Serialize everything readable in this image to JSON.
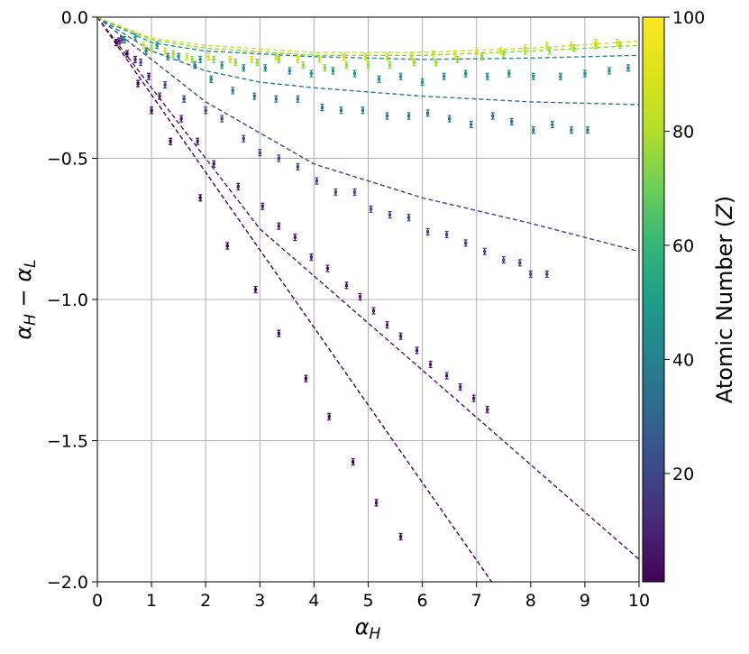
{
  "chart_data": {
    "type": "scatter",
    "xlabel": "α_H",
    "ylabel": "α_H − α_L",
    "xlim": [
      0,
      10
    ],
    "ylim": [
      -2.0,
      0.0
    ],
    "x_ticks": [
      0,
      1,
      2,
      3,
      4,
      5,
      6,
      7,
      8,
      9,
      10
    ],
    "x_tick_labels": [
      "0",
      "1",
      "2",
      "3",
      "4",
      "5",
      "6",
      "7",
      "8",
      "9",
      "10"
    ],
    "y_ticks": [
      0.0,
      -0.5,
      -1.0,
      -1.5,
      -2.0
    ],
    "y_tick_labels": [
      "0.0",
      "−0.5",
      "−1.0",
      "−1.5",
      "−2.0"
    ],
    "grid": true,
    "colorbar": {
      "label": "Atomic Number (Z)",
      "range": [
        1,
        100
      ],
      "ticks": [
        20,
        40,
        60,
        80,
        100
      ],
      "tick_labels": [
        "20",
        "40",
        "60",
        "80",
        "100"
      ],
      "colormap": "viridis"
    },
    "series": [
      {
        "z": 1,
        "color": "#440154",
        "points": [
          [
            0.35,
            -0.09
          ],
          [
            0.55,
            -0.13
          ],
          [
            0.75,
            -0.235
          ],
          [
            1.0,
            -0.33
          ],
          [
            1.35,
            -0.44
          ],
          [
            1.9,
            -0.64
          ],
          [
            2.4,
            -0.81
          ],
          [
            2.92,
            -0.965
          ],
          [
            3.35,
            -1.12
          ],
          [
            3.85,
            -1.28
          ],
          [
            4.28,
            -1.415
          ],
          [
            4.72,
            -1.575
          ],
          [
            5.15,
            -1.72
          ],
          [
            5.6,
            -1.84
          ]
        ],
        "fit_line": [
          [
            0,
            0
          ],
          [
            7.28,
            -2.0
          ]
        ]
      },
      {
        "z": 5,
        "color": "#481a6c",
        "points": [
          [
            0.4,
            -0.085
          ],
          [
            0.7,
            -0.15
          ],
          [
            0.95,
            -0.21
          ],
          [
            1.15,
            -0.28
          ],
          [
            1.55,
            -0.36
          ],
          [
            1.85,
            -0.44
          ],
          [
            2.15,
            -0.52
          ],
          [
            2.6,
            -0.6
          ],
          [
            3.05,
            -0.67
          ],
          [
            3.35,
            -0.74
          ],
          [
            3.65,
            -0.78
          ],
          [
            3.95,
            -0.85
          ],
          [
            4.25,
            -0.89
          ],
          [
            4.6,
            -0.95
          ],
          [
            4.85,
            -0.99
          ],
          [
            5.1,
            -1.04
          ],
          [
            5.35,
            -1.09
          ],
          [
            5.6,
            -1.13
          ],
          [
            5.9,
            -1.18
          ],
          [
            6.15,
            -1.23
          ],
          [
            6.45,
            -1.27
          ],
          [
            6.7,
            -1.31
          ],
          [
            6.95,
            -1.35
          ],
          [
            7.2,
            -1.39
          ]
        ],
        "fit_line": [
          [
            0,
            0
          ],
          [
            3,
            -0.75
          ],
          [
            6,
            -1.25
          ],
          [
            10,
            -1.92
          ]
        ]
      },
      {
        "z": 14,
        "color": "#3f4788",
        "points": [
          [
            0.45,
            -0.08
          ],
          [
            0.8,
            -0.16
          ],
          [
            1.25,
            -0.24
          ],
          [
            1.6,
            -0.29
          ],
          [
            2.0,
            -0.33
          ],
          [
            2.3,
            -0.36
          ],
          [
            2.7,
            -0.43
          ],
          [
            3.0,
            -0.48
          ],
          [
            3.35,
            -0.5
          ],
          [
            3.7,
            -0.53
          ],
          [
            4.05,
            -0.58
          ],
          [
            4.4,
            -0.62
          ],
          [
            4.75,
            -0.62
          ],
          [
            5.05,
            -0.68
          ],
          [
            5.4,
            -0.7
          ],
          [
            5.75,
            -0.71
          ],
          [
            6.1,
            -0.76
          ],
          [
            6.45,
            -0.77
          ],
          [
            6.8,
            -0.8
          ],
          [
            7.15,
            -0.83
          ],
          [
            7.5,
            -0.86
          ],
          [
            7.8,
            -0.87
          ],
          [
            8.0,
            -0.91
          ],
          [
            8.3,
            -0.91
          ]
        ],
        "fit_line": [
          [
            0,
            0
          ],
          [
            2,
            -0.3
          ],
          [
            4,
            -0.52
          ],
          [
            6,
            -0.64
          ],
          [
            8,
            -0.73
          ],
          [
            10,
            -0.83
          ]
        ]
      },
      {
        "z": 29,
        "color": "#2a788e",
        "points": [
          [
            0.5,
            -0.08
          ],
          [
            0.9,
            -0.12
          ],
          [
            1.3,
            -0.14
          ],
          [
            1.8,
            -0.17
          ],
          [
            2.1,
            -0.22
          ],
          [
            2.5,
            -0.26
          ],
          [
            2.9,
            -0.28
          ],
          [
            3.3,
            -0.29
          ],
          [
            3.7,
            -0.29
          ],
          [
            4.15,
            -0.32
          ],
          [
            4.5,
            -0.33
          ],
          [
            4.9,
            -0.33
          ],
          [
            5.35,
            -0.35
          ],
          [
            5.75,
            -0.35
          ],
          [
            6.1,
            -0.34
          ],
          [
            6.5,
            -0.36
          ],
          [
            6.9,
            -0.38
          ],
          [
            7.3,
            -0.35
          ],
          [
            7.65,
            -0.37
          ],
          [
            8.05,
            -0.4
          ],
          [
            8.4,
            -0.38
          ],
          [
            8.75,
            -0.4
          ],
          [
            9.05,
            -0.4
          ]
        ],
        "fit_line": [
          [
            0,
            0
          ],
          [
            1,
            -0.12
          ],
          [
            2,
            -0.19
          ],
          [
            3,
            -0.23
          ],
          [
            4,
            -0.25
          ],
          [
            5,
            -0.265
          ],
          [
            6,
            -0.28
          ],
          [
            8,
            -0.3
          ],
          [
            10,
            -0.31
          ]
        ]
      },
      {
        "z": 47,
        "color": "#21918c",
        "points": [
          [
            0.7,
            -0.07
          ],
          [
            1.1,
            -0.1
          ],
          [
            1.5,
            -0.14
          ],
          [
            1.9,
            -0.15
          ],
          [
            2.3,
            -0.17
          ],
          [
            2.7,
            -0.18
          ],
          [
            3.1,
            -0.18
          ],
          [
            3.55,
            -0.19
          ],
          [
            3.95,
            -0.2
          ],
          [
            4.35,
            -0.19
          ],
          [
            4.75,
            -0.2
          ],
          [
            5.2,
            -0.22
          ],
          [
            5.6,
            -0.21
          ],
          [
            6.0,
            -0.23
          ],
          [
            6.4,
            -0.21
          ],
          [
            6.8,
            -0.2
          ],
          [
            7.2,
            -0.21
          ],
          [
            7.6,
            -0.2
          ],
          [
            8.05,
            -0.21
          ],
          [
            8.55,
            -0.21
          ],
          [
            9.0,
            -0.2
          ],
          [
            9.45,
            -0.19
          ],
          [
            9.8,
            -0.18
          ]
        ],
        "fit_line": [
          [
            0,
            0
          ],
          [
            1,
            -0.09
          ],
          [
            2,
            -0.12
          ],
          [
            4,
            -0.14
          ],
          [
            6,
            -0.15
          ],
          [
            8,
            -0.145
          ],
          [
            10,
            -0.135
          ]
        ]
      },
      {
        "z": 79,
        "color": "#8fd744",
        "points": [
          [
            1.0,
            -0.11
          ],
          [
            1.4,
            -0.13
          ],
          [
            1.75,
            -0.15
          ],
          [
            2.15,
            -0.15
          ],
          [
            2.55,
            -0.16
          ],
          [
            2.95,
            -0.16
          ],
          [
            3.35,
            -0.15
          ],
          [
            3.8,
            -0.17
          ],
          [
            4.2,
            -0.18
          ],
          [
            4.6,
            -0.17
          ],
          [
            5.0,
            -0.17
          ],
          [
            5.4,
            -0.17
          ],
          [
            5.85,
            -0.16
          ],
          [
            6.25,
            -0.16
          ],
          [
            6.65,
            -0.15
          ],
          [
            7.1,
            -0.14
          ],
          [
            7.5,
            -0.13
          ],
          [
            7.9,
            -0.12
          ],
          [
            8.35,
            -0.12
          ],
          [
            8.8,
            -0.11
          ],
          [
            9.2,
            -0.1
          ],
          [
            9.65,
            -0.1
          ]
        ],
        "fit_line": [
          [
            0,
            0
          ],
          [
            1,
            -0.08
          ],
          [
            2,
            -0.11
          ],
          [
            4,
            -0.135
          ],
          [
            6,
            -0.135
          ],
          [
            8,
            -0.12
          ],
          [
            10,
            -0.1
          ]
        ]
      },
      {
        "z": 92,
        "color": "#d0e11c",
        "points": [
          [
            0.85,
            -0.1
          ],
          [
            1.25,
            -0.12
          ],
          [
            1.65,
            -0.14
          ],
          [
            2.05,
            -0.14
          ],
          [
            2.45,
            -0.15
          ],
          [
            2.85,
            -0.15
          ],
          [
            3.3,
            -0.14
          ],
          [
            3.7,
            -0.15
          ],
          [
            4.1,
            -0.15
          ],
          [
            4.55,
            -0.14
          ],
          [
            4.95,
            -0.14
          ],
          [
            5.35,
            -0.14
          ],
          [
            5.8,
            -0.14
          ],
          [
            6.2,
            -0.13
          ],
          [
            6.6,
            -0.13
          ],
          [
            7.0,
            -0.12
          ],
          [
            7.45,
            -0.12
          ],
          [
            7.9,
            -0.11
          ],
          [
            8.3,
            -0.1
          ],
          [
            8.75,
            -0.1
          ],
          [
            9.2,
            -0.09
          ],
          [
            9.6,
            -0.09
          ]
        ],
        "fit_line": [
          [
            0,
            0
          ],
          [
            1,
            -0.075
          ],
          [
            2,
            -0.1
          ],
          [
            4,
            -0.125
          ],
          [
            6,
            -0.125
          ],
          [
            8,
            -0.11
          ],
          [
            10,
            -0.085
          ]
        ]
      }
    ]
  }
}
